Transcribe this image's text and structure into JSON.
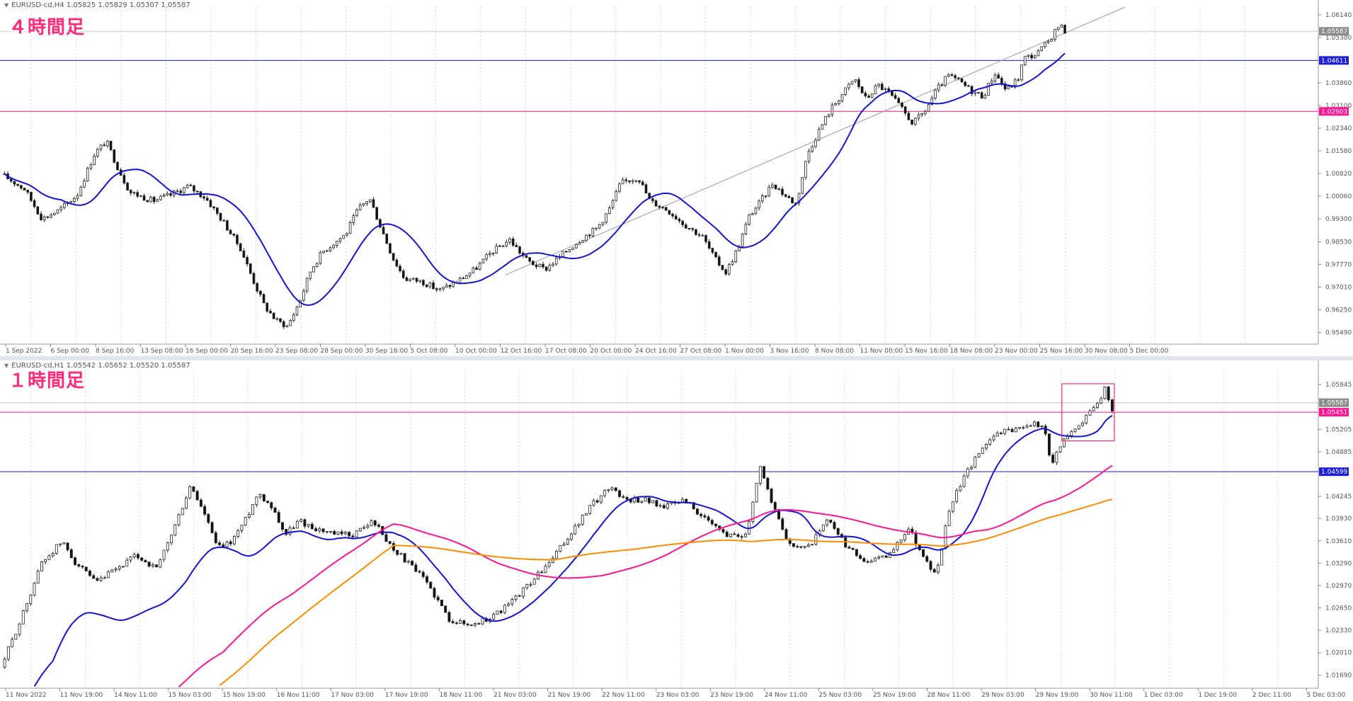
{
  "chart_data": [
    {
      "type": "candlestick",
      "title": "４時間足",
      "header": "EURUSD-cd,H4  1.05825 1.05829 1.05307 1.05587",
      "ylim": [
        0.951,
        1.064
      ],
      "y_ticks": [
        "1.06140",
        "1.05380",
        "1.03860",
        "1.03100",
        "1.02340",
        "1.01580",
        "1.00820",
        "1.00060",
        "0.99300",
        "0.98530",
        "0.97770",
        "0.97010",
        "0.96250",
        "0.95490"
      ],
      "x_ticks": [
        "1 Sep 2022",
        "6 Sep 00:00",
        "8 Sep 16:00",
        "13 Sep 08:00",
        "16 Sep 00:00",
        "20 Sep 16:00",
        "23 Sep 08:00",
        "28 Sep 00:00",
        "30 Sep 16:00",
        "5 Oct 08:00",
        "10 Oct 00:00",
        "12 Oct 16:00",
        "17 Oct 08:00",
        "20 Oct 00:00",
        "24 Oct 16:00",
        "27 Oct 08:00",
        "1 Nov 00:00",
        "3 Nov 16:00",
        "8 Nov 08:00",
        "11 Nov 00:00",
        "15 Nov 16:00",
        "18 Nov 08:00",
        "23 Nov 00:00",
        "25 Nov 16:00",
        "30 Nov 08:00",
        "5 Dec 00:00"
      ],
      "horizontal_lines": [
        {
          "value": 1.04611,
          "label": "1.04611",
          "color": "#1c1cdc"
        },
        {
          "value": 1.02903,
          "label": "1.02903",
          "color": "#ff1493"
        }
      ],
      "current_price": {
        "value": 1.05587,
        "label": "1.05587"
      },
      "trendline": {
        "from": [
          0.43,
          0.9742
        ],
        "to": [
          0.96,
          1.064
        ]
      },
      "moving_averages": [
        {
          "color": "#1414d8"
        }
      ],
      "price_path": [
        [
          0.0,
          1.008
        ],
        [
          0.02,
          1.003
        ],
        [
          0.035,
          0.993
        ],
        [
          0.05,
          0.996
        ],
        [
          0.065,
          1.001
        ],
        [
          0.08,
          1.015
        ],
        [
          0.09,
          1.019
        ],
        [
          0.1,
          1.01
        ],
        [
          0.11,
          1.002
        ],
        [
          0.13,
          0.999
        ],
        [
          0.145,
          1.001
        ],
        [
          0.16,
          1.004
        ],
        [
          0.175,
          1.0
        ],
        [
          0.19,
          0.992
        ],
        [
          0.205,
          0.983
        ],
        [
          0.215,
          0.973
        ],
        [
          0.225,
          0.964
        ],
        [
          0.235,
          0.959
        ],
        [
          0.245,
          0.957
        ],
        [
          0.255,
          0.965
        ],
        [
          0.265,
          0.976
        ],
        [
          0.275,
          0.982
        ],
        [
          0.285,
          0.985
        ],
        [
          0.295,
          0.988
        ],
        [
          0.305,
          0.996
        ],
        [
          0.315,
          1.0
        ],
        [
          0.325,
          0.99
        ],
        [
          0.335,
          0.98
        ],
        [
          0.345,
          0.973
        ],
        [
          0.36,
          0.972
        ],
        [
          0.375,
          0.969
        ],
        [
          0.39,
          0.972
        ],
        [
          0.405,
          0.976
        ],
        [
          0.42,
          0.982
        ],
        [
          0.435,
          0.986
        ],
        [
          0.45,
          0.979
        ],
        [
          0.465,
          0.976
        ],
        [
          0.48,
          0.981
        ],
        [
          0.495,
          0.986
        ],
        [
          0.51,
          0.99
        ],
        [
          0.52,
          0.996
        ],
        [
          0.53,
          1.005
        ],
        [
          0.545,
          1.007
        ],
        [
          0.555,
          0.999
        ],
        [
          0.57,
          0.996
        ],
        [
          0.585,
          0.991
        ],
        [
          0.6,
          0.987
        ],
        [
          0.61,
          0.98
        ],
        [
          0.62,
          0.975
        ],
        [
          0.63,
          0.983
        ],
        [
          0.64,
          0.994
        ],
        [
          0.65,
          0.999
        ],
        [
          0.66,
          1.005
        ],
        [
          0.67,
          1.001
        ],
        [
          0.68,
          0.998
        ],
        [
          0.69,
          1.015
        ],
        [
          0.7,
          1.023
        ],
        [
          0.71,
          1.03
        ],
        [
          0.72,
          1.035
        ],
        [
          0.73,
          1.04
        ],
        [
          0.74,
          1.033
        ],
        [
          0.75,
          1.038
        ],
        [
          0.76,
          1.035
        ],
        [
          0.77,
          1.03
        ],
        [
          0.78,
          1.025
        ],
        [
          0.79,
          1.029
        ],
        [
          0.8,
          1.036
        ],
        [
          0.81,
          1.041
        ],
        [
          0.82,
          1.039
        ],
        [
          0.83,
          1.036
        ],
        [
          0.84,
          1.034
        ],
        [
          0.85,
          1.042
        ],
        [
          0.86,
          1.036
        ],
        [
          0.87,
          1.04
        ],
        [
          0.875,
          1.047
        ],
        [
          0.885,
          1.048
        ],
        [
          0.895,
          1.052
        ],
        [
          0.905,
          1.058
        ],
        [
          0.91,
          1.056
        ]
      ]
    },
    {
      "type": "candlestick",
      "title": "１時間足",
      "header": "EURUSD-cd,H1  1.05542 1.05652 1.05520 1.05587",
      "ylim": [
        1.015,
        1.0605
      ],
      "y_ticks": [
        "1.05845",
        "1.05205",
        "1.04885",
        "1.04245",
        "1.03930",
        "1.03610",
        "1.03290",
        "1.02970",
        "1.02650",
        "1.02330",
        "1.02010",
        "1.01690"
      ],
      "x_ticks": [
        "11 Nov 2022",
        "11 Nov 19:00",
        "14 Nov 11:00",
        "15 Nov 03:00",
        "15 Nov 19:00",
        "16 Nov 11:00",
        "17 Nov 03:00",
        "17 Nov 19:00",
        "18 Nov 11:00",
        "21 Nov 03:00",
        "21 Nov 19:00",
        "22 Nov 11:00",
        "23 Nov 03:00",
        "23 Nov 19:00",
        "24 Nov 11:00",
        "25 Nov 03:00",
        "25 Nov 19:00",
        "28 Nov 11:00",
        "29 Nov 03:00",
        "29 Nov 19:00",
        "30 Nov 11:00",
        "1 Dec 03:00",
        "1 Dec 19:00",
        "2 Dec 11:00",
        "5 Dec 03:00"
      ],
      "horizontal_lines": [
        {
          "value": 1.05451,
          "label": "1.05451",
          "color": "#ff1493"
        },
        {
          "value": 1.04599,
          "label": "1.04599",
          "color": "#1c1cdc"
        }
      ],
      "current_price": {
        "value": 1.05587,
        "label": "1.05587"
      },
      "moving_averages": [
        {
          "color": "#1414d8"
        },
        {
          "color": "#ff1493"
        },
        {
          "color": "#ff8c00"
        }
      ],
      "highlight_box": {
        "color": "#ff2a7a"
      },
      "price_path": [
        [
          0.0,
          1.018
        ],
        [
          0.015,
          1.025
        ],
        [
          0.03,
          1.033
        ],
        [
          0.045,
          1.036
        ],
        [
          0.055,
          1.033
        ],
        [
          0.07,
          1.03
        ],
        [
          0.085,
          1.032
        ],
        [
          0.1,
          1.034
        ],
        [
          0.115,
          1.032
        ],
        [
          0.13,
          1.039
        ],
        [
          0.14,
          1.044
        ],
        [
          0.15,
          1.04
        ],
        [
          0.16,
          1.035
        ],
        [
          0.17,
          1.036
        ],
        [
          0.18,
          1.039
        ],
        [
          0.19,
          1.043
        ],
        [
          0.2,
          1.041
        ],
        [
          0.21,
          1.037
        ],
        [
          0.22,
          1.039
        ],
        [
          0.23,
          1.038
        ],
        [
          0.245,
          1.037
        ],
        [
          0.26,
          1.037
        ],
        [
          0.275,
          1.039
        ],
        [
          0.285,
          1.036
        ],
        [
          0.3,
          1.033
        ],
        [
          0.315,
          1.03
        ],
        [
          0.33,
          1.025
        ],
        [
          0.345,
          1.024
        ],
        [
          0.36,
          1.025
        ],
        [
          0.375,
          1.027
        ],
        [
          0.39,
          1.03
        ],
        [
          0.405,
          1.033
        ],
        [
          0.42,
          1.037
        ],
        [
          0.435,
          1.041
        ],
        [
          0.45,
          1.044
        ],
        [
          0.46,
          1.042
        ],
        [
          0.475,
          1.042
        ],
        [
          0.49,
          1.041
        ],
        [
          0.505,
          1.042
        ],
        [
          0.52,
          1.039
        ],
        [
          0.535,
          1.037
        ],
        [
          0.55,
          1.037
        ],
        [
          0.56,
          1.047
        ],
        [
          0.57,
          1.041
        ],
        [
          0.58,
          1.036
        ],
        [
          0.595,
          1.035
        ],
        [
          0.61,
          1.039
        ],
        [
          0.625,
          1.035
        ],
        [
          0.64,
          1.033
        ],
        [
          0.655,
          1.034
        ],
        [
          0.67,
          1.038
        ],
        [
          0.68,
          1.034
        ],
        [
          0.69,
          1.031
        ],
        [
          0.7,
          1.041
        ],
        [
          0.71,
          1.045
        ],
        [
          0.72,
          1.048
        ],
        [
          0.73,
          1.051
        ],
        [
          0.745,
          1.052
        ],
        [
          0.76,
          1.053
        ],
        [
          0.77,
          1.052
        ],
        [
          0.775,
          1.047
        ],
        [
          0.785,
          1.051
        ],
        [
          0.795,
          1.0525
        ],
        [
          0.81,
          1.056
        ],
        [
          0.815,
          1.058
        ],
        [
          0.82,
          1.055
        ]
      ]
    }
  ]
}
